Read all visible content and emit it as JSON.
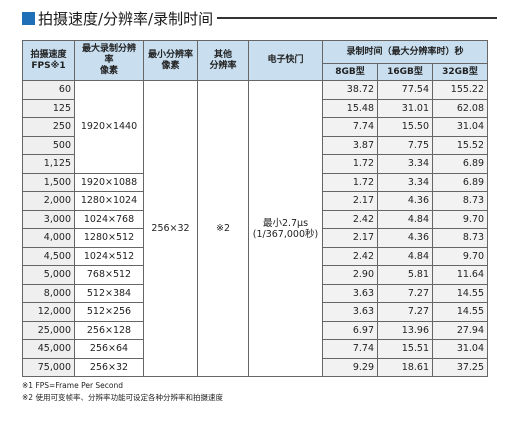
{
  "header": {
    "title": "拍摄速度/分辨率/录制时间"
  },
  "table": {
    "columns": {
      "fps": [
        "拍摄速度",
        "FPS※1"
      ],
      "max_resolution": [
        "最大录制分辨率",
        "像素"
      ],
      "min_resolution": [
        "最小分辨率",
        "像素"
      ],
      "other": [
        "其他",
        "分辨率"
      ],
      "shutter": "电子快门",
      "recording_time": "录制时间（最大分辨率时）秒",
      "memory": [
        "8GB型",
        "16GB型",
        "32GB型"
      ]
    },
    "rows": [
      {
        "fps": "60",
        "times": [
          "38.72",
          "77.54",
          "155.22"
        ]
      },
      {
        "fps": "125",
        "times": [
          "15.48",
          "31.01",
          "62.08"
        ]
      },
      {
        "fps": "250",
        "times": [
          "7.74",
          "15.50",
          "31.04"
        ]
      },
      {
        "fps": "500",
        "times": [
          "3.87",
          "7.75",
          "15.52"
        ]
      },
      {
        "fps": "1,125",
        "times": [
          "1.72",
          "3.34",
          "6.89"
        ]
      },
      {
        "fps": "1,500",
        "times": [
          "1.72",
          "3.34",
          "6.89"
        ]
      },
      {
        "fps": "2,000",
        "times": [
          "2.17",
          "4.36",
          "8.73"
        ]
      },
      {
        "fps": "3,000",
        "times": [
          "2.42",
          "4.84",
          "9.70"
        ]
      },
      {
        "fps": "4,000",
        "times": [
          "2.17",
          "4.36",
          "8.73"
        ]
      },
      {
        "fps": "4,500",
        "times": [
          "2.42",
          "4.84",
          "9.70"
        ]
      },
      {
        "fps": "5,000",
        "times": [
          "2.90",
          "5.81",
          "11.64"
        ]
      },
      {
        "fps": "8,000",
        "times": [
          "3.63",
          "7.27",
          "14.55"
        ]
      },
      {
        "fps": "12,000",
        "times": [
          "3.63",
          "7.27",
          "14.55"
        ]
      },
      {
        "fps": "25,000",
        "times": [
          "6.97",
          "13.96",
          "27.94"
        ]
      },
      {
        "fps": "45,000",
        "times": [
          "7.74",
          "15.51",
          "31.04"
        ]
      },
      {
        "fps": "75,000",
        "times": [
          "9.29",
          "18.61",
          "37.25"
        ]
      }
    ],
    "max_resolution": [
      "1920×1440",
      "1920×1088",
      "1280×1024",
      "1024×768",
      "1280×512",
      "1024×512",
      "768×512",
      "512×384",
      "512×256",
      "256×128",
      "256×64",
      "256×32"
    ],
    "min_resolution": "256×32",
    "other": "※2",
    "shutter": [
      "最小2.7μs",
      "(1/367,000秒)"
    ]
  },
  "notes": [
    "※1 FPS=Frame Per Second",
    "※2 使用可变帧率、分辨率功能可设定各种分辨率和拍摄速度"
  ]
}
